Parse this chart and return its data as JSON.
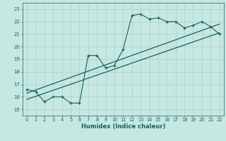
{
  "xlabel": "Humidex (Indice chaleur)",
  "xlim": [
    -0.5,
    22.5
  ],
  "ylim": [
    14.5,
    23.5
  ],
  "xticks": [
    0,
    1,
    2,
    3,
    4,
    5,
    6,
    7,
    8,
    9,
    10,
    11,
    12,
    13,
    14,
    15,
    16,
    17,
    18,
    19,
    20,
    21,
    22
  ],
  "yticks": [
    15,
    16,
    17,
    18,
    19,
    20,
    21,
    22,
    23
  ],
  "bg_color": "#c5e8e2",
  "grid_color": "#b0d4cc",
  "line_color": "#1a6060",
  "line2_x": [
    0,
    22
  ],
  "line2_y": [
    15.8,
    21.1
  ],
  "line3_x": [
    0,
    22
  ],
  "line3_y": [
    16.3,
    21.8
  ],
  "zigzag_x": [
    0,
    1,
    2,
    3,
    4,
    5,
    6,
    7,
    8,
    9,
    10,
    11,
    12,
    13,
    14,
    15,
    16,
    17,
    18,
    19,
    20,
    21,
    22
  ],
  "zigzag_y": [
    16.6,
    16.4,
    15.6,
    16.0,
    16.0,
    15.5,
    15.5,
    19.3,
    19.3,
    18.3,
    18.5,
    19.8,
    22.5,
    22.6,
    22.2,
    22.3,
    22.0,
    22.0,
    21.5,
    21.7,
    22.0,
    21.6,
    21.0
  ]
}
